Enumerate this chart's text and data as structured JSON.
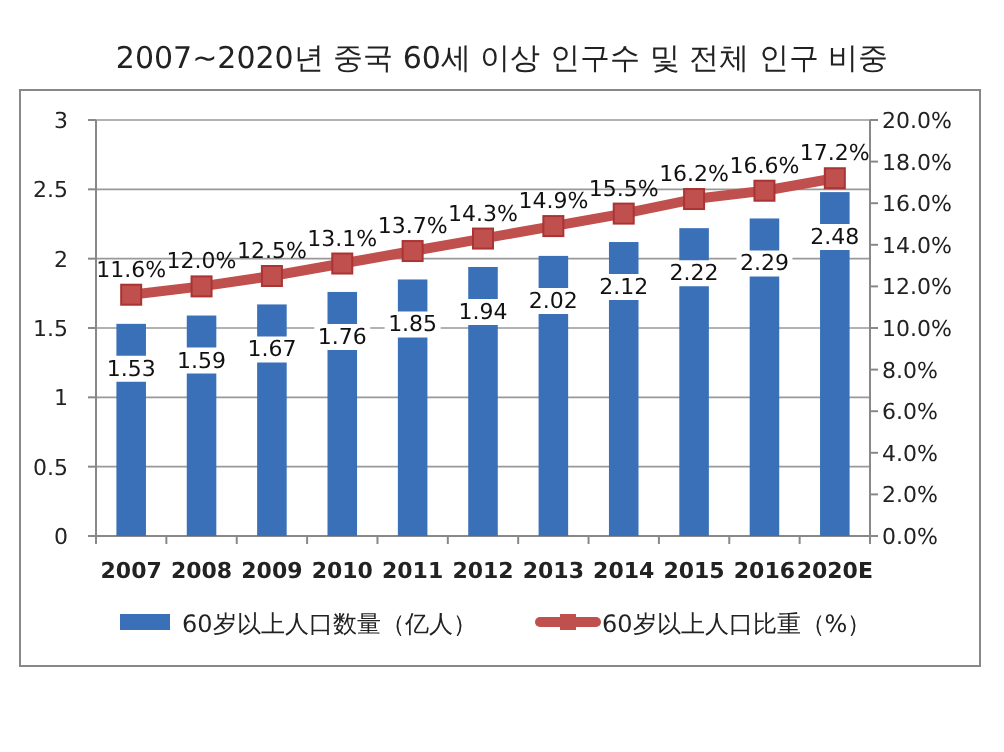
{
  "chart_data": {
    "type": "bar",
    "title": "2007~2020년 중국 60세 이상 인구수 및 전체 인구 비중",
    "categories": [
      "2007",
      "2008",
      "2009",
      "2010",
      "2011",
      "2012",
      "2013",
      "2014",
      "2015",
      "2016",
      "2020E"
    ],
    "series": [
      {
        "name": "60岁以上人口数量（亿人）",
        "color": "#3a70b8",
        "values": [
          1.53,
          1.59,
          1.67,
          1.76,
          1.85,
          1.94,
          2.02,
          2.12,
          2.22,
          2.29,
          2.48
        ],
        "value_labels": [
          "1.53",
          "1.59",
          "1.67",
          "1.76",
          "1.85",
          "1.94",
          "2.02",
          "2.12",
          "2.22",
          "2.29",
          "2.48"
        ]
      },
      {
        "name": "60岁以上人口比重（%）",
        "type": "line",
        "axis": "y2",
        "color": "#c0504d",
        "marker": "square",
        "values": [
          11.6,
          12.0,
          12.5,
          13.1,
          13.7,
          14.3,
          14.9,
          15.5,
          16.2,
          16.6,
          17.2
        ],
        "value_labels": [
          "11.6%",
          "12.0%",
          "12.5%",
          "13.1%",
          "13.7%",
          "14.3%",
          "14.9%",
          "15.5%",
          "16.2%",
          "16.6%",
          "17.2%"
        ]
      }
    ],
    "ylim": [
      0,
      3
    ],
    "yticks": [
      0,
      0.5,
      1,
      1.5,
      2,
      2.5,
      3
    ],
    "y2lim": [
      0,
      20
    ],
    "y2ticks": [
      {
        "value": 0,
        "label": "0.0%"
      },
      {
        "value": 2,
        "label": "2.0%"
      },
      {
        "value": 4,
        "label": "4.0%"
      },
      {
        "value": 6,
        "label": "6.0%"
      },
      {
        "value": 8,
        "label": "8.0%"
      },
      {
        "value": 10,
        "label": "10.0%"
      },
      {
        "value": 12,
        "label": "12.0%"
      },
      {
        "value": 14,
        "label": "14.0%"
      },
      {
        "value": 16,
        "label": "16.0%"
      },
      {
        "value": 18,
        "label": "18.0%"
      },
      {
        "value": 20,
        "label": "20.0%"
      }
    ],
    "grid": "y",
    "legend": "bottom"
  }
}
